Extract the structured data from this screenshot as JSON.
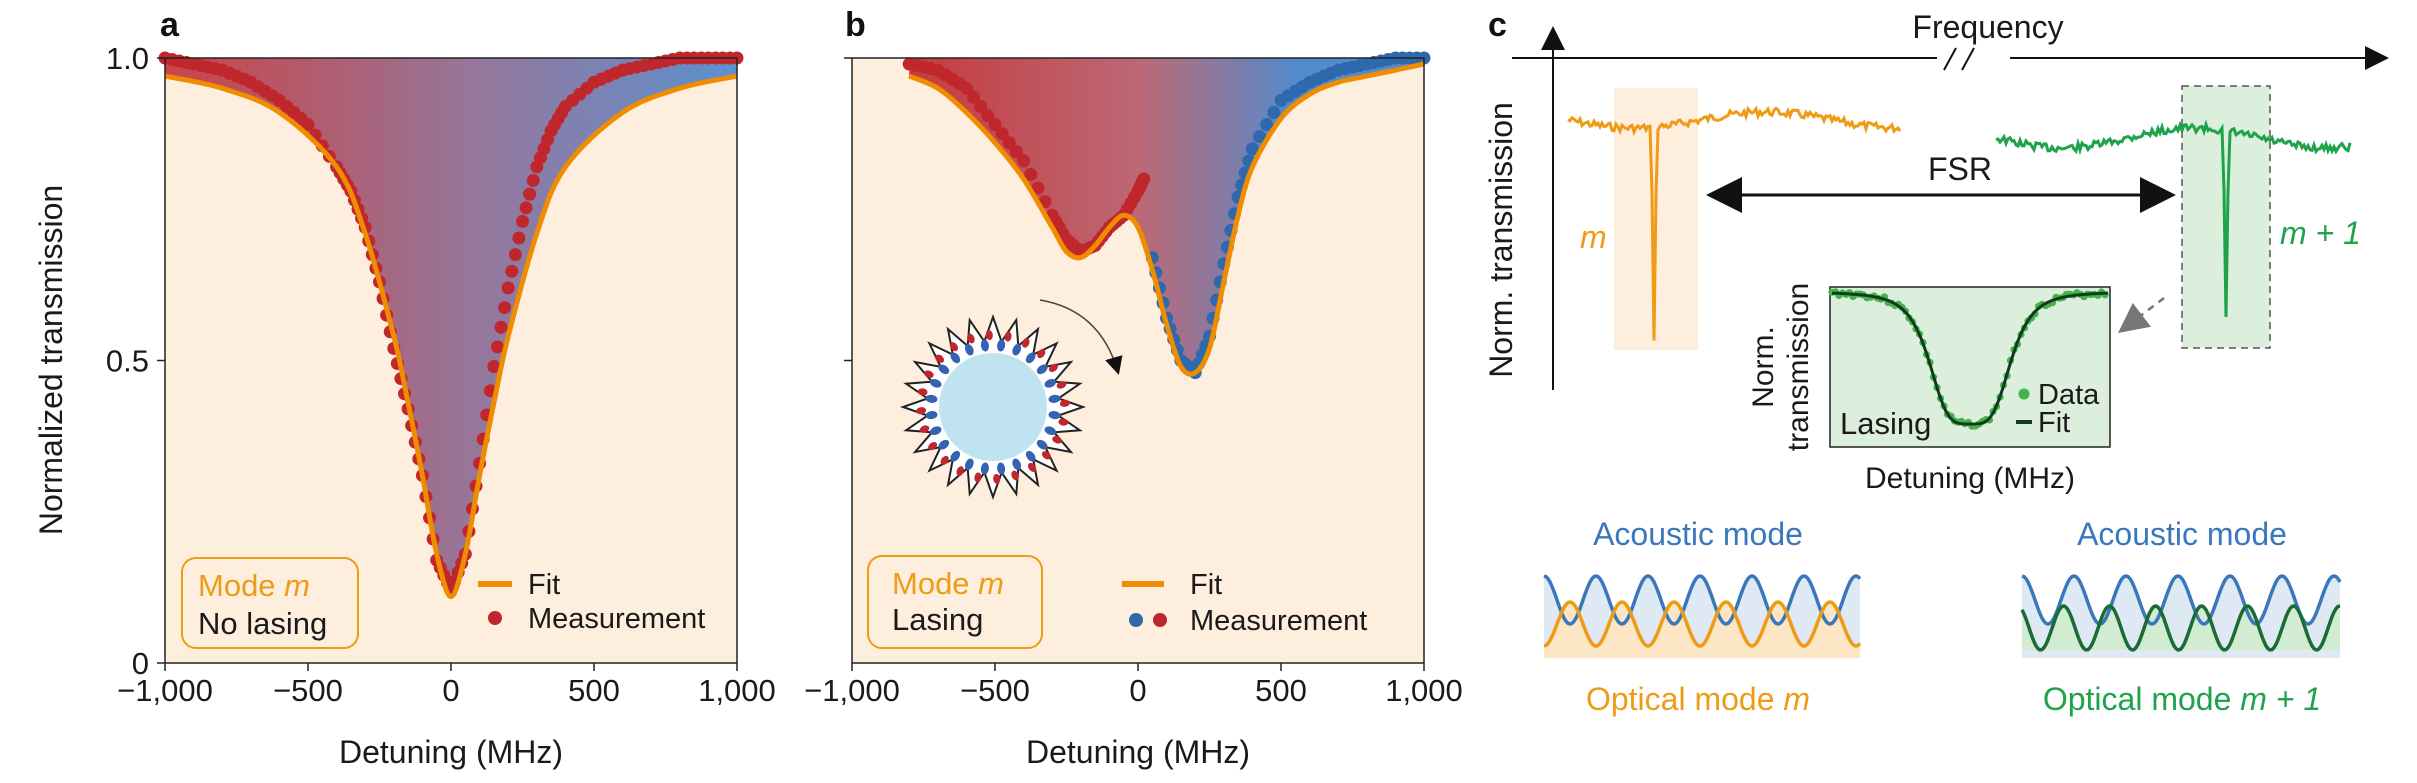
{
  "panel_letters": {
    "a": "a",
    "b": "b",
    "c": "c"
  },
  "colors": {
    "fit": "#f08c00",
    "red": "#c0272d",
    "blue_dot": "#2f69ad",
    "green": "#1ea24a",
    "panel_bg": "#fdeede",
    "acoustic": "#3a78bb",
    "optical": "#ee9b16",
    "dark_green": "#1a6b35"
  },
  "panel_a": {
    "legend_box": {
      "line1_prefix": "Mode ",
      "line1_var": "m",
      "line2": "No lasing"
    },
    "legend": {
      "fit": "Fit",
      "measurement": "Measurement"
    }
  },
  "panel_b": {
    "legend_box": {
      "line1_prefix": "Mode ",
      "line1_var": "m",
      "line2": "Lasing"
    },
    "legend": {
      "fit": "Fit",
      "measurement": "Measurement"
    }
  },
  "panel_c": {
    "frequency_label": "Frequency",
    "ylabel": "Norm. transmission",
    "fsr_label": "FSR",
    "mode_m_label": "m",
    "mode_m1_label": "m + 1",
    "inset": {
      "ylabel_line1": "Norm.",
      "ylabel_line2": "transmission",
      "xlabel": "Detuning (MHz)",
      "lasing_label": "Lasing",
      "legend_data": "Data",
      "legend_fit": "Fit"
    },
    "left_wave": {
      "acoustic_label": "Acoustic mode",
      "optical_label_prefix": "Optical mode ",
      "optical_var": "m"
    },
    "right_wave": {
      "acoustic_label": "Acoustic mode",
      "optical_label_prefix": "Optical mode ",
      "optical_var": "m + 1"
    }
  },
  "chart_data": [
    {
      "id": "a",
      "type": "line",
      "title": "",
      "xlabel": "Detuning (MHz)",
      "ylabel": "Normalized transmission",
      "xlim": [
        -1000,
        1000
      ],
      "ylim": [
        0,
        1
      ],
      "xticks": [
        -1000,
        -500,
        0,
        500,
        1000
      ],
      "xtick_labels": [
        "−1,000",
        "−500",
        "0",
        "500",
        "1,000"
      ],
      "yticks": [
        0,
        0.5,
        1.0
      ],
      "ytick_labels": [
        "0",
        "0.5",
        "1.0"
      ],
      "series": [
        {
          "name": "Fit",
          "x": [
            -1000,
            -800,
            -600,
            -400,
            -300,
            -200,
            -150,
            -100,
            -50,
            0,
            50,
            100,
            150,
            200,
            300,
            400,
            600,
            800,
            1000
          ],
          "y": [
            0.97,
            0.95,
            0.91,
            0.82,
            0.71,
            0.54,
            0.43,
            0.31,
            0.18,
            0.11,
            0.18,
            0.31,
            0.43,
            0.54,
            0.71,
            0.82,
            0.91,
            0.95,
            0.97
          ]
        },
        {
          "name": "Measurement",
          "x": [
            -1000,
            -900,
            -800,
            -700,
            -600,
            -500,
            -400,
            -350,
            -300,
            -250,
            -200,
            -150,
            -100,
            -50,
            0,
            50,
            100,
            150,
            200,
            250,
            300,
            350,
            400,
            500,
            600,
            700,
            800,
            900,
            1000
          ],
          "y": [
            1.0,
            0.99,
            0.98,
            0.96,
            0.93,
            0.89,
            0.82,
            0.78,
            0.72,
            0.63,
            0.52,
            0.42,
            0.31,
            0.17,
            0.12,
            0.18,
            0.33,
            0.49,
            0.62,
            0.73,
            0.82,
            0.88,
            0.92,
            0.96,
            0.98,
            0.99,
            1.0,
            1.0,
            1.0
          ]
        }
      ]
    },
    {
      "id": "b",
      "type": "line",
      "title": "",
      "xlabel": "Detuning (MHz)",
      "ylabel": "",
      "xlim": [
        -1000,
        1000
      ],
      "ylim": [
        0,
        1
      ],
      "xticks": [
        -1000,
        -500,
        0,
        500,
        1000
      ],
      "xtick_labels": [
        "−1,000",
        "−500",
        "0",
        "500",
        "1,000"
      ],
      "yticks": [
        0.5,
        1.0
      ],
      "ytick_labels": [
        "",
        ""
      ],
      "series": [
        {
          "name": "Fit",
          "x": [
            -800,
            -700,
            -600,
            -500,
            -400,
            -300,
            -250,
            -200,
            -150,
            -100,
            -50,
            0,
            50,
            100,
            150,
            200,
            250,
            300,
            350,
            400,
            500,
            600,
            700,
            800,
            1000
          ],
          "y": [
            0.97,
            0.95,
            0.91,
            0.86,
            0.8,
            0.72,
            0.68,
            0.67,
            0.69,
            0.72,
            0.74,
            0.72,
            0.65,
            0.56,
            0.49,
            0.48,
            0.52,
            0.63,
            0.74,
            0.82,
            0.9,
            0.94,
            0.96,
            0.97,
            0.99
          ]
        },
        {
          "name": "Measurement (red)",
          "x": [
            -800,
            -700,
            -600,
            -500,
            -400,
            -300,
            -250,
            -200,
            -150,
            -100,
            -50,
            0,
            20
          ],
          "y": [
            0.99,
            0.98,
            0.95,
            0.89,
            0.83,
            0.74,
            0.7,
            0.68,
            0.69,
            0.72,
            0.74,
            0.78,
            0.8
          ]
        },
        {
          "name": "Measurement (blue)",
          "x": [
            50,
            100,
            150,
            200,
            250,
            300,
            350,
            400,
            500,
            600,
            700,
            800,
            900,
            1000
          ],
          "y": [
            0.67,
            0.57,
            0.5,
            0.48,
            0.54,
            0.66,
            0.77,
            0.85,
            0.93,
            0.96,
            0.98,
            0.99,
            1.0,
            1.0
          ]
        }
      ]
    }
  ]
}
